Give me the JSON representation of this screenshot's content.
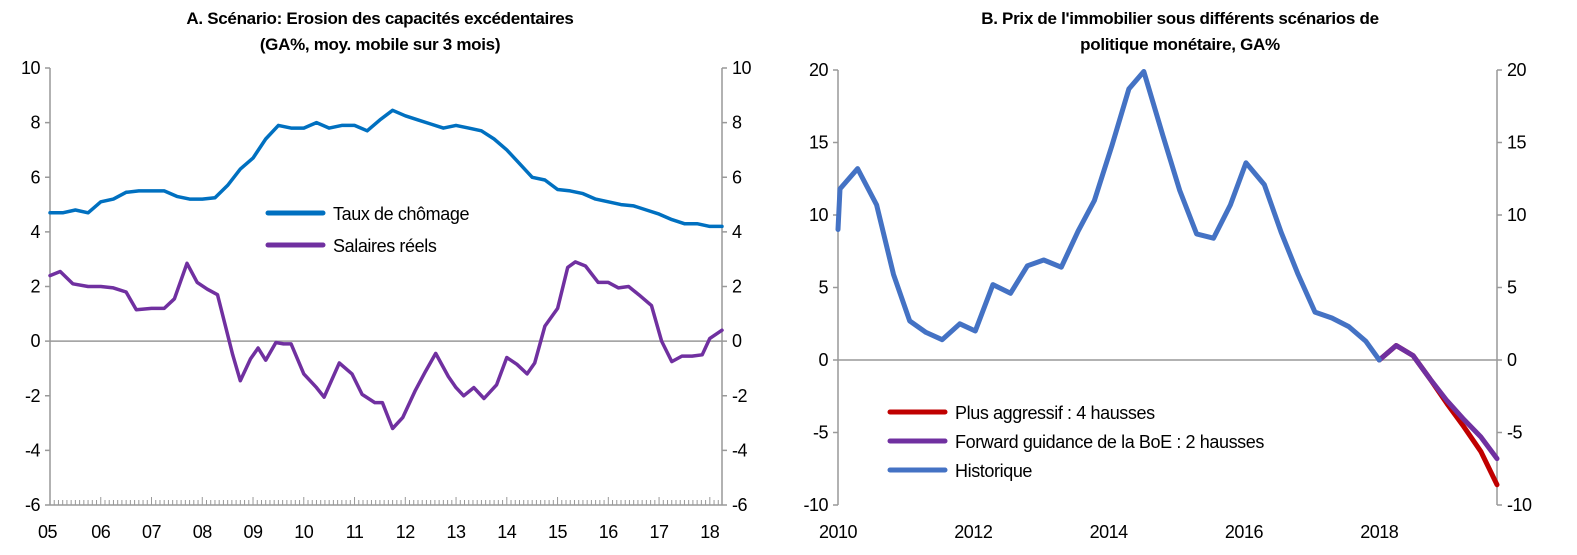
{
  "chart_data": [
    {
      "type": "line",
      "title": "A. Scénario: Erosion des capacités excédentaires",
      "subtitle": "(GA%, moy. mobile sur 3 mois)",
      "xlabel": "",
      "ylabel": "",
      "xlim": [
        2005,
        2018.24
      ],
      "ylim": [
        -6,
        10
      ],
      "yticks": [
        -6,
        -4,
        -2,
        0,
        2,
        4,
        6,
        8,
        10
      ],
      "xticks": [
        2005,
        2006,
        2007,
        2008,
        2009,
        2010,
        2011,
        2012,
        2013,
        2014,
        2015,
        2016,
        2017,
        2018
      ],
      "xtick_labels": [
        "05",
        "06",
        "07",
        "08",
        "09",
        "10",
        "11",
        "12",
        "13",
        "14",
        "15",
        "16",
        "17",
        "18"
      ],
      "legend_position": "center",
      "series": [
        {
          "name": "Taux de chômage",
          "color": "#0070C0",
          "x": [
            2005,
            2005.25,
            2005.5,
            2005.75,
            2006,
            2006.25,
            2006.5,
            2006.75,
            2007,
            2007.25,
            2007.5,
            2007.75,
            2008,
            2008.25,
            2008.5,
            2008.75,
            2009,
            2009.25,
            2009.5,
            2009.75,
            2010,
            2010.25,
            2010.5,
            2010.75,
            2011,
            2011.25,
            2011.5,
            2011.75,
            2012,
            2012.25,
            2012.5,
            2012.75,
            2013,
            2013.25,
            2013.5,
            2013.75,
            2014,
            2014.25,
            2014.5,
            2014.75,
            2015,
            2015.25,
            2015.5,
            2015.75,
            2016,
            2016.25,
            2016.5,
            2016.75,
            2017,
            2017.25,
            2017.5,
            2017.75,
            2018,
            2018.24
          ],
          "y": [
            4.7,
            4.7,
            4.8,
            4.7,
            5.1,
            5.2,
            5.45,
            5.5,
            5.5,
            5.5,
            5.3,
            5.2,
            5.2,
            5.25,
            5.7,
            6.3,
            6.7,
            7.4,
            7.9,
            7.8,
            7.8,
            8.0,
            7.8,
            7.9,
            7.9,
            7.7,
            8.1,
            8.45,
            8.25,
            8.1,
            7.95,
            7.8,
            7.9,
            7.8,
            7.7,
            7.4,
            7.0,
            6.5,
            6.0,
            5.9,
            5.55,
            5.5,
            5.4,
            5.2,
            5.1,
            5.0,
            4.95,
            4.8,
            4.65,
            4.45,
            4.3,
            4.3,
            4.2,
            4.2
          ]
        },
        {
          "name": "Salaires réels",
          "color": "#7030A0",
          "x": [
            2005,
            2005.2,
            2005.45,
            2005.75,
            2006,
            2006.25,
            2006.5,
            2006.7,
            2007,
            2007.25,
            2007.45,
            2007.7,
            2007.9,
            2008.1,
            2008.3,
            2008.45,
            2008.6,
            2008.75,
            2008.95,
            2009.1,
            2009.25,
            2009.45,
            2009.6,
            2009.75,
            2010,
            2010.25,
            2010.4,
            2010.7,
            2010.95,
            2011.15,
            2011.4,
            2011.55,
            2011.75,
            2011.95,
            2012.2,
            2012.4,
            2012.6,
            2012.85,
            2013,
            2013.15,
            2013.35,
            2013.55,
            2013.8,
            2014,
            2014.2,
            2014.4,
            2014.55,
            2014.75,
            2015,
            2015.2,
            2015.35,
            2015.55,
            2015.8,
            2016,
            2016.2,
            2016.4,
            2016.6,
            2016.85,
            2017.05,
            2017.25,
            2017.45,
            2017.65,
            2017.85,
            2018,
            2018.24
          ],
          "y": [
            2.4,
            2.55,
            2.1,
            2.0,
            2.0,
            1.95,
            1.8,
            1.15,
            1.2,
            1.2,
            1.55,
            2.85,
            2.15,
            1.9,
            1.7,
            0.6,
            -0.5,
            -1.45,
            -0.65,
            -0.25,
            -0.7,
            -0.05,
            -0.1,
            -0.1,
            -1.2,
            -1.7,
            -2.05,
            -0.8,
            -1.2,
            -1.95,
            -2.25,
            -2.25,
            -3.2,
            -2.8,
            -1.8,
            -1.1,
            -0.45,
            -1.3,
            -1.7,
            -2.0,
            -1.7,
            -2.1,
            -1.6,
            -0.6,
            -0.85,
            -1.2,
            -0.8,
            0.55,
            1.2,
            2.7,
            2.9,
            2.75,
            2.15,
            2.15,
            1.95,
            2.0,
            1.7,
            1.3,
            0.0,
            -0.75,
            -0.55,
            -0.55,
            -0.5,
            0.1,
            0.4
          ]
        }
      ]
    },
    {
      "type": "line",
      "title": "B. Prix de l'immobilier sous différents scénarios de",
      "subtitle": "politique monétaire, GA%",
      "xlabel": "",
      "ylabel": "",
      "xlim": [
        2010,
        2019.74
      ],
      "ylim": [
        -10,
        20
      ],
      "yticks": [
        -10,
        -5,
        0,
        5,
        10,
        15,
        20
      ],
      "xticks": [
        2010,
        2012,
        2014,
        2016,
        2018
      ],
      "xtick_labels": [
        "2010",
        "2012",
        "2014",
        "2016",
        "2018"
      ],
      "legend_position": "bottom-left",
      "series": [
        {
          "name": "Plus aggressif : 4 hausses",
          "color": "#C00000",
          "x": [
            2018,
            2018.25,
            2018.5,
            2018.75,
            2019,
            2019.25,
            2019.5,
            2019.74
          ],
          "y": [
            0,
            1.0,
            0.3,
            -1.3,
            -3.0,
            -4.6,
            -6.3,
            -8.6
          ]
        },
        {
          "name": "Forward guidance de la BoE : 2 hausses",
          "color": "#7030A0",
          "x": [
            2018,
            2018.25,
            2018.5,
            2018.75,
            2019,
            2019.25,
            2019.5,
            2019.74
          ],
          "y": [
            0,
            1.0,
            0.3,
            -1.3,
            -2.8,
            -4.1,
            -5.3,
            -6.8
          ]
        },
        {
          "name": "Historique",
          "color": "#4472C4",
          "x": [
            2010,
            2010.03,
            2010.29,
            2010.57,
            2010.82,
            2011.06,
            2011.3,
            2011.54,
            2011.8,
            2012.03,
            2012.29,
            2012.55,
            2012.8,
            2013.04,
            2013.3,
            2013.55,
            2013.79,
            2014.05,
            2014.3,
            2014.52,
            2014.8,
            2015.05,
            2015.3,
            2015.55,
            2015.8,
            2016.03,
            2016.3,
            2016.55,
            2016.8,
            2017.05,
            2017.3,
            2017.55,
            2017.8,
            2018
          ],
          "y": [
            9.0,
            11.8,
            13.2,
            10.7,
            5.9,
            2.7,
            1.9,
            1.4,
            2.5,
            2.0,
            5.2,
            4.6,
            6.5,
            6.9,
            6.4,
            8.9,
            11.0,
            14.8,
            18.7,
            19.9,
            15.5,
            11.7,
            8.7,
            8.4,
            10.7,
            13.6,
            12.1,
            8.8,
            5.9,
            3.3,
            2.9,
            2.3,
            1.3,
            0.0
          ]
        }
      ]
    }
  ]
}
